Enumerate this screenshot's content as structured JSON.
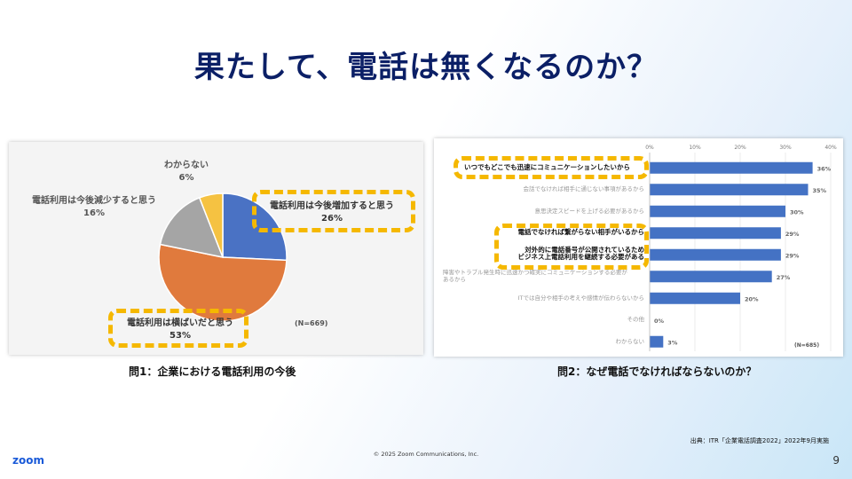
{
  "slide": {
    "title": "果たして、電話は無くなるのか？",
    "page_number": "9",
    "copyright": "© 2025 Zoom Communications, Inc.",
    "logo_text": "zoom",
    "source": "出典：ITR「企業電話調査2022」2022年9月実施"
  },
  "left_chart": {
    "caption": "問1：企業における電話利用の今後",
    "n_label": "(N=669)"
  },
  "right_chart": {
    "caption": "問2：なぜ電話でなければならないのか？",
    "n_label": "(N=685)"
  },
  "colors": {
    "title": "#0b1f66",
    "bar": "#4472c4",
    "highlight": "#f5b800"
  },
  "chart_data": [
    {
      "type": "pie",
      "slices": [
        {
          "label": "電話利用は今後増加すると思う",
          "value": 26,
          "value_label": "26%",
          "color": "#4a72c4"
        },
        {
          "label": "電話利用は横ばいだと思う",
          "value": 53,
          "value_label": "53%",
          "color": "#e07a3d"
        },
        {
          "label": "電話利用は今後減少すると思う",
          "value": 16,
          "value_label": "16%",
          "color": "#a5a5a5"
        },
        {
          "label": "わからない",
          "value": 6,
          "value_label": "6%",
          "color": "#f5c242"
        }
      ]
    },
    {
      "type": "bar",
      "orientation": "horizontal",
      "xlim": [
        0,
        40
      ],
      "xticks": [
        "0%",
        "10%",
        "20%",
        "30%",
        "40%"
      ],
      "categories": [
        "いつでもどこでも迅速にコミュニケーションしたいから",
        "会話でなければ相手に通じない事項があるから",
        "意思決定スピードを上げる必要があるから",
        "電話でなければ繋がらない相手がいるから",
        "対外的に電話番号が公開されているため\nビジネス上電話利用を継続する必要がある",
        "障害やトラブル発生時に迅速かつ確実にコミュニケーションする必要が\nあるから",
        "ITでは自分や相手の考えや感情が伝わらないから",
        "その他",
        "わからない"
      ],
      "values": [
        36,
        35,
        30,
        29,
        29,
        27,
        20,
        0,
        3
      ],
      "value_labels": [
        "36%",
        "35%",
        "30%",
        "29%",
        "29%",
        "27%",
        "20%",
        "0%",
        "3%"
      ],
      "highlighted": [
        true,
        false,
        false,
        true,
        true,
        false,
        false,
        false,
        false
      ]
    }
  ]
}
